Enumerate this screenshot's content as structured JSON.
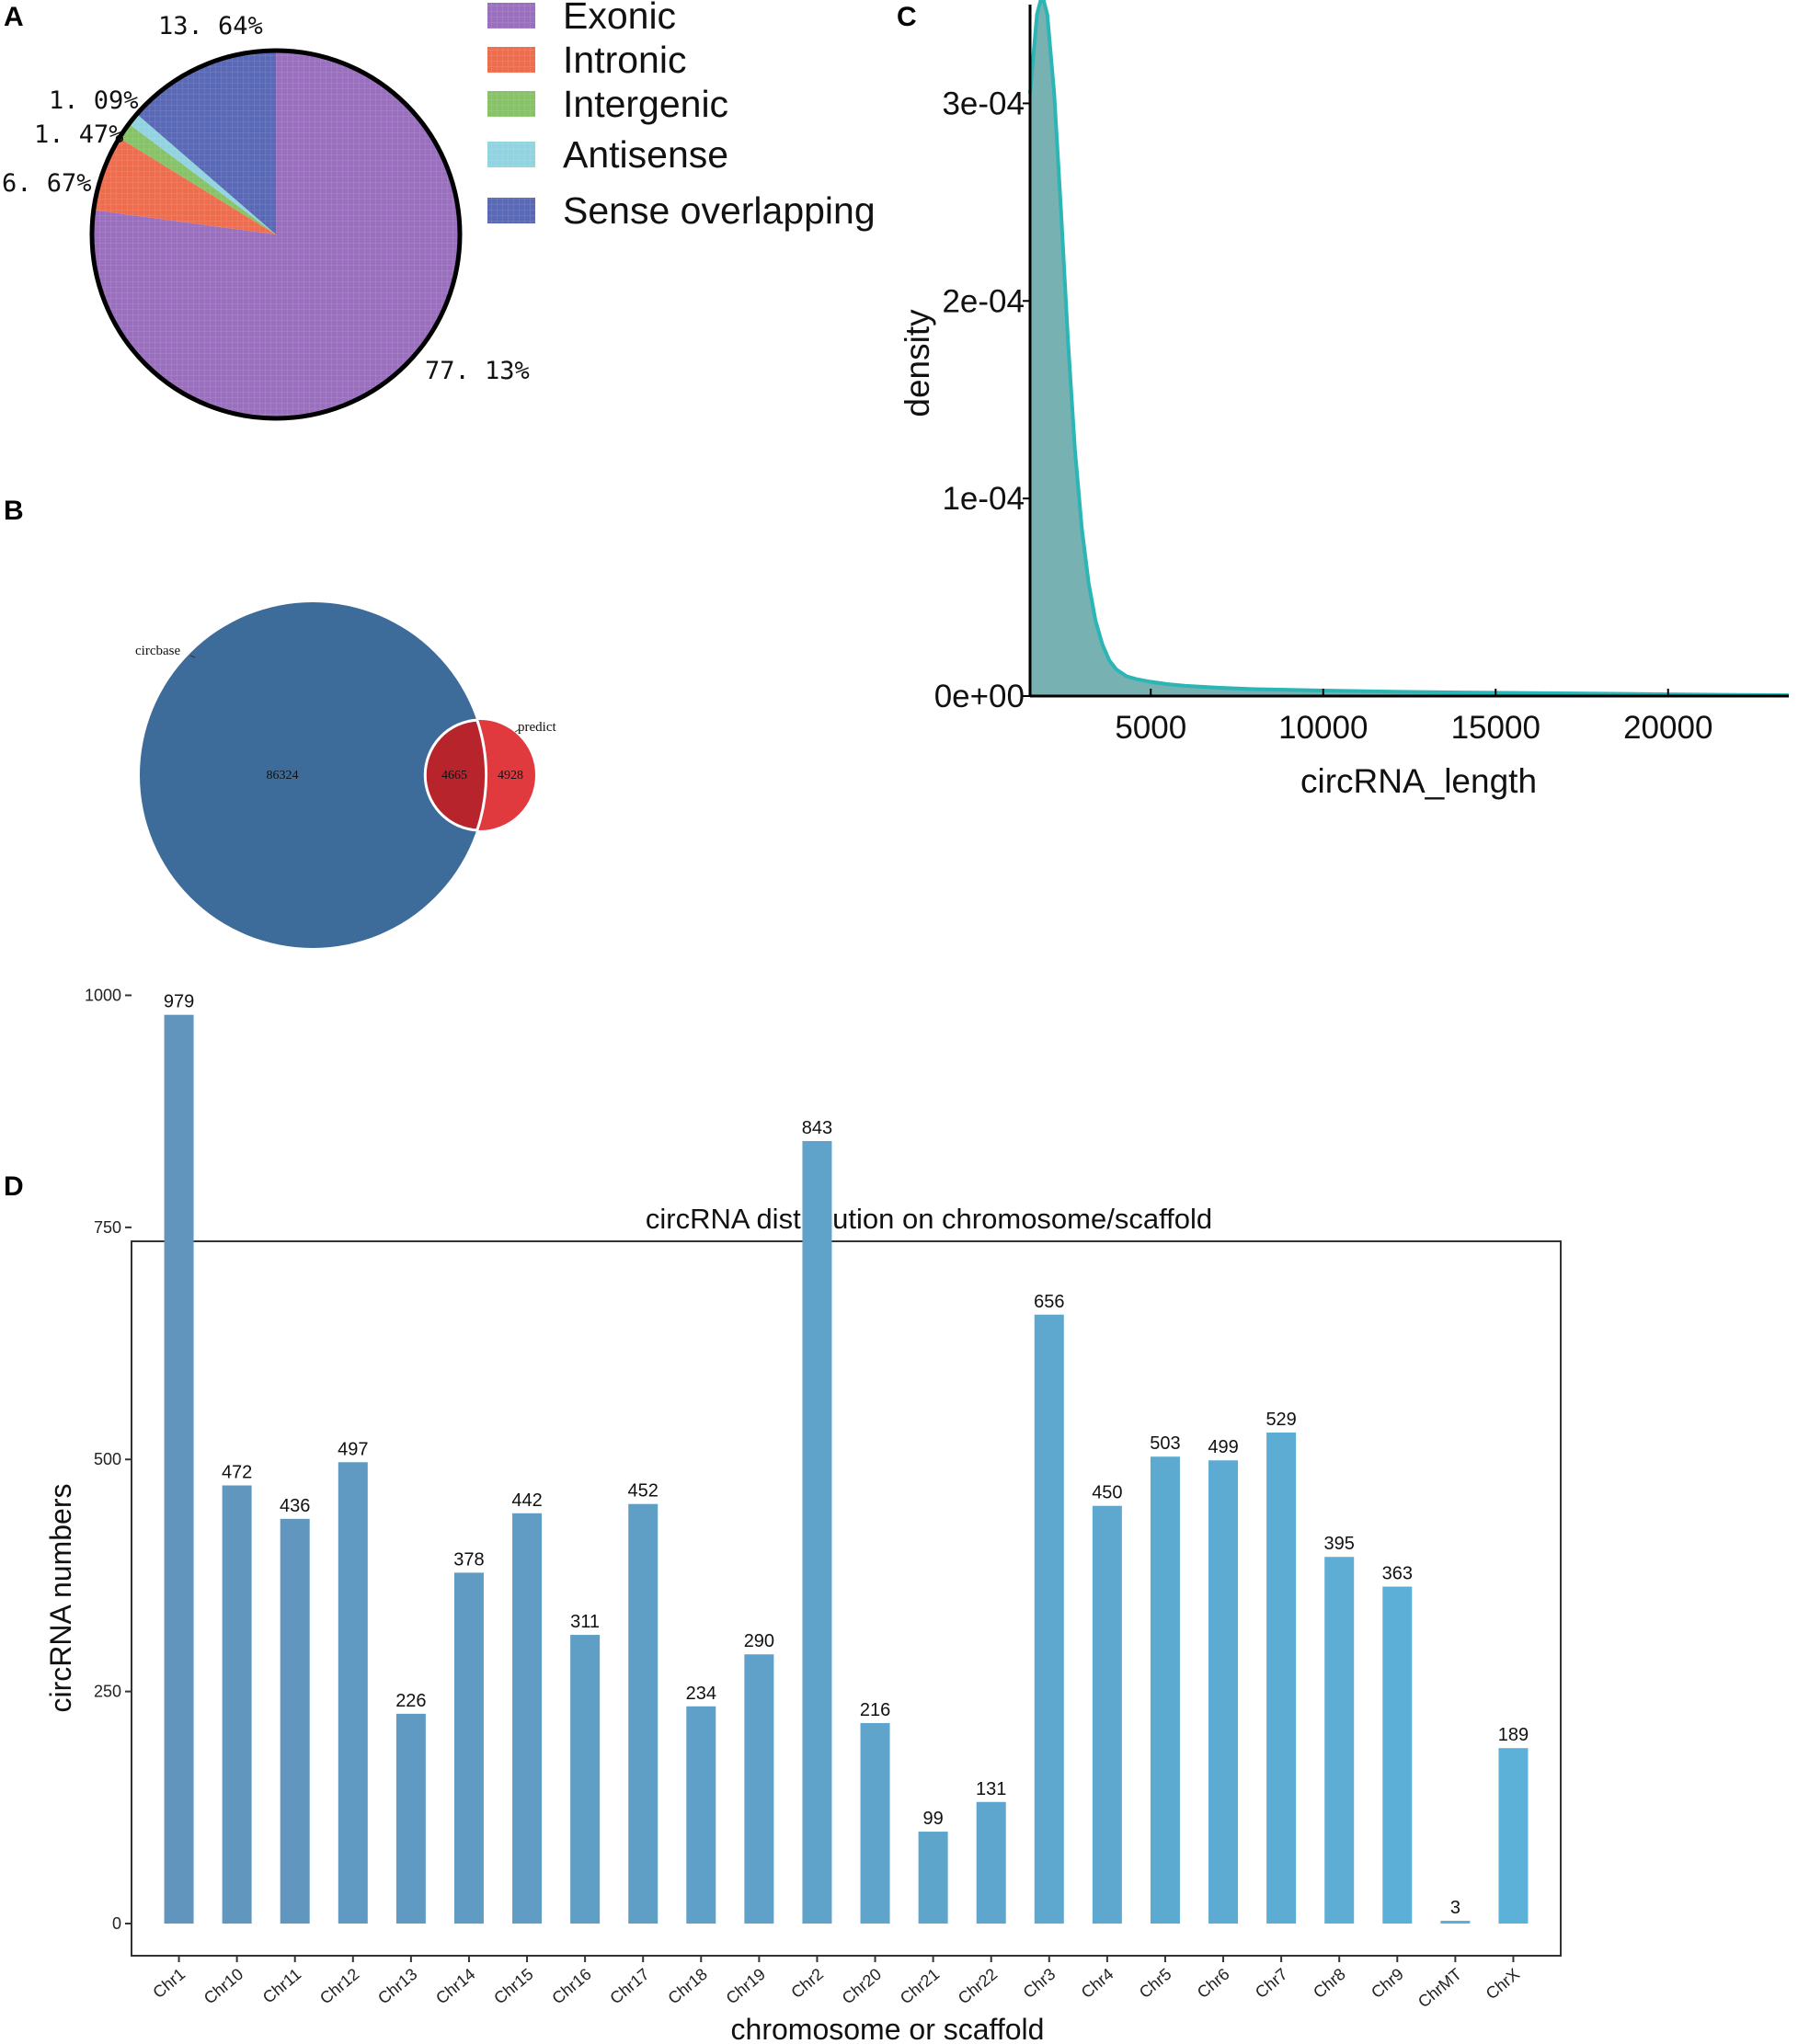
{
  "panels": {
    "a": "A",
    "b": "B",
    "c": "C",
    "d": "D"
  },
  "chart_data": [
    {
      "type": "pie",
      "panel": "A",
      "categories": [
        "Exonic",
        "Intronic",
        "Intergenic",
        "Antisense",
        "Sense overlapping"
      ],
      "values": [
        77.13,
        6.67,
        1.47,
        1.09,
        13.64
      ],
      "labels": [
        "77. 13%",
        "6. 67%",
        "1. 47%",
        "1. 09%",
        "13. 64%"
      ],
      "colors": [
        "#9b6fbf",
        "#f06c4c",
        "#86c266",
        "#8fd4e0",
        "#5968b8"
      ],
      "legend": [
        "Exonic",
        "Intronic",
        "Intergenic",
        "Antisense",
        "Sense overlapping"
      ]
    },
    {
      "type": "venn",
      "panel": "B",
      "sets": [
        "circbase",
        "predict"
      ],
      "only_circbase": "86324",
      "intersection": "4665",
      "only_predict": "4928",
      "colors": {
        "circbase": "#3d6b9a",
        "predict": "#e0393e",
        "overlap": "#b8242c"
      }
    },
    {
      "type": "area",
      "panel": "C",
      "xlabel": "circRNA_length",
      "ylabel": "density",
      "x_ticks": [
        "5000",
        "10000",
        "15000",
        "20000"
      ],
      "y_ticks": [
        "0e+00",
        "1e-04",
        "2e-04",
        "3e-04"
      ],
      "xlim": [
        1500,
        23500
      ],
      "ylim": [
        0,
        0.00035
      ],
      "curve": {
        "x": [
          1500,
          1700,
          1850,
          2000,
          2200,
          2400,
          2600,
          2800,
          3000,
          3200,
          3400,
          3600,
          3800,
          4000,
          4300,
          4600,
          5000,
          5500,
          6000,
          7000,
          8000,
          10000,
          12000,
          14000,
          16000,
          18000,
          20000,
          22000,
          23500
        ],
        "y": [
          0.000305,
          0.000345,
          0.000355,
          0.000345,
          0.000305,
          0.000245,
          0.00018,
          0.000125,
          8.5e-05,
          5.7e-05,
          3.8e-05,
          2.6e-05,
          1.8e-05,
          1.35e-05,
          1e-05,
          8.5e-06,
          7.2e-06,
          6e-06,
          5.2e-06,
          4.2e-06,
          3.5e-06,
          2.8e-06,
          2.2e-06,
          1.8e-06,
          1.5e-06,
          1.2e-06,
          9e-07,
          6e-07,
          4e-07
        ]
      },
      "fill": "#77b1b1",
      "line": "#2bb5b5"
    },
    {
      "type": "bar",
      "panel": "D",
      "title": "circRNA distribution on chromosome/scaffold",
      "xlabel": "chromosome or scaffold",
      "ylabel": "circRNA numbers",
      "ylim": [
        0,
        1050
      ],
      "y_ticks": [
        0,
        250,
        500,
        750,
        1000
      ],
      "categories": [
        "Chr1",
        "Chr10",
        "Chr11",
        "Chr12",
        "Chr13",
        "Chr14",
        "Chr15",
        "Chr16",
        "Chr17",
        "Chr18",
        "Chr19",
        "Chr2",
        "Chr20",
        "Chr21",
        "Chr22",
        "Chr3",
        "Chr4",
        "Chr5",
        "Chr6",
        "Chr7",
        "Chr8",
        "Chr9",
        "ChrMT",
        "ChrX"
      ],
      "values": [
        979,
        472,
        436,
        497,
        226,
        378,
        442,
        311,
        452,
        234,
        290,
        843,
        216,
        99,
        131,
        656,
        450,
        503,
        499,
        529,
        395,
        363,
        3,
        189
      ],
      "color_start": "#6195bd",
      "color_end": "#5cb1d8"
    }
  ]
}
